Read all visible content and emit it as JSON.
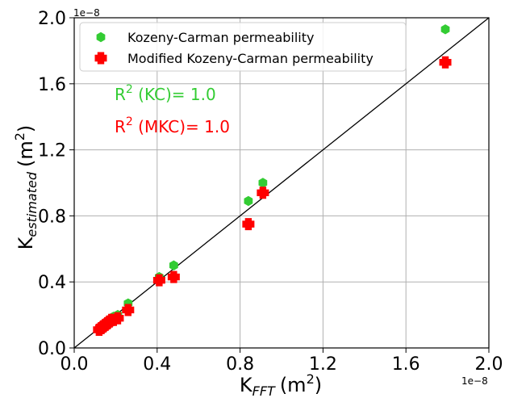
{
  "chart_data": {
    "type": "scatter",
    "xlabel_main": "K",
    "xlabel_sub": "FFT",
    "xlabel_unit": "(m",
    "xlabel_sup": "2",
    "xlabel_close": ")",
    "ylabel_main": "K",
    "ylabel_sub": "estimated",
    "ylabel_unit": "(m",
    "ylabel_sup": "2",
    "ylabel_close": ")",
    "x_multiplier": "1e−8",
    "y_multiplier": "1e−8",
    "xlim": [
      0.0,
      2.0
    ],
    "ylim": [
      0.0,
      2.0
    ],
    "xticks": [
      "0.0",
      "0.4",
      "0.8",
      "1.2",
      "1.6",
      "2.0"
    ],
    "yticks": [
      "0.0",
      "0.4",
      "0.8",
      "1.2",
      "1.6",
      "2.0"
    ],
    "grid": true,
    "legend_position": "top-left",
    "reference_line": "y = x",
    "series": [
      {
        "name": "Kozeny-Carman permeability",
        "color": "#33cc33",
        "marker": "hexagon",
        "points": [
          [
            0.12,
            0.11
          ],
          [
            0.13,
            0.12
          ],
          [
            0.14,
            0.13
          ],
          [
            0.15,
            0.14
          ],
          [
            0.16,
            0.15
          ],
          [
            0.17,
            0.16
          ],
          [
            0.18,
            0.18
          ],
          [
            0.19,
            0.19
          ],
          [
            0.21,
            0.2
          ],
          [
            0.26,
            0.27
          ],
          [
            0.41,
            0.43
          ],
          [
            0.48,
            0.5
          ],
          [
            0.84,
            0.89
          ],
          [
            0.91,
            1.0
          ],
          [
            1.79,
            1.93
          ]
        ]
      },
      {
        "name": "Modified Kozeny-Carman permeability",
        "color": "#ff0000",
        "marker": "plus",
        "points": [
          [
            0.12,
            0.11
          ],
          [
            0.13,
            0.12
          ],
          [
            0.14,
            0.13
          ],
          [
            0.15,
            0.14
          ],
          [
            0.16,
            0.15
          ],
          [
            0.17,
            0.16
          ],
          [
            0.18,
            0.17
          ],
          [
            0.19,
            0.17
          ],
          [
            0.21,
            0.18
          ],
          [
            0.26,
            0.23
          ],
          [
            0.41,
            0.41
          ],
          [
            0.48,
            0.43
          ],
          [
            0.84,
            0.75
          ],
          [
            0.91,
            0.94
          ],
          [
            1.79,
            1.73
          ]
        ]
      }
    ],
    "annotations": [
      {
        "main": "R",
        "sup": "2",
        "rest": " (KC)= 1.0",
        "color": "#33cc33"
      },
      {
        "main": "R",
        "sup": "2",
        "rest": " (MKC)= 1.0",
        "color": "#ff0000"
      }
    ]
  }
}
